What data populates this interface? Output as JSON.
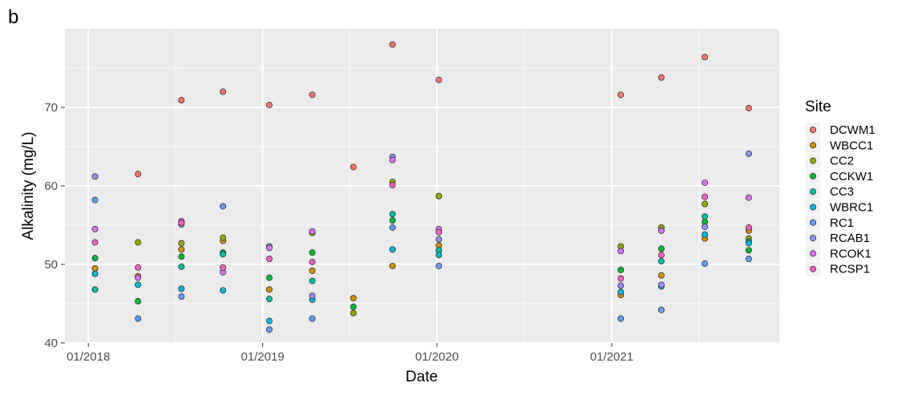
{
  "panel_label": "b",
  "chart_data": {
    "type": "scatter",
    "xlabel": "Date",
    "ylabel": "Alkalinity (mg/L)",
    "x_ticks": [
      "01/2018",
      "01/2019",
      "01/2020",
      "01/2021"
    ],
    "y_ticks": [
      40,
      50,
      60,
      70
    ],
    "ylim": [
      40,
      80
    ],
    "xlim": [
      "2017-11-13",
      "2021-12-18"
    ],
    "grid": true,
    "background": "#ebebeb",
    "legend": {
      "title": "Site",
      "position": "right"
    },
    "series": [
      {
        "name": "DCWM1",
        "color": "#F8766D",
        "points": [
          {
            "x": "2018-04-15",
            "y": 61.5
          },
          {
            "x": "2018-07-15",
            "y": 70.9
          },
          {
            "x": "2018-10-10",
            "y": 72.0
          },
          {
            "x": "2019-01-15",
            "y": 70.3
          },
          {
            "x": "2019-04-15",
            "y": 71.6
          },
          {
            "x": "2019-07-10",
            "y": 62.4
          },
          {
            "x": "2019-09-30",
            "y": 78.0
          },
          {
            "x": "2020-01-05",
            "y": 73.5
          },
          {
            "x": "2021-01-20",
            "y": 71.6
          },
          {
            "x": "2021-04-15",
            "y": 73.8
          },
          {
            "x": "2021-07-15",
            "y": 76.4
          },
          {
            "x": "2021-10-15",
            "y": 69.9
          }
        ]
      },
      {
        "name": "WBCC1",
        "color": "#D39200",
        "points": [
          {
            "x": "2018-01-15",
            "y": 49.5
          },
          {
            "x": "2018-04-15",
            "y": 48.5
          },
          {
            "x": "2018-07-15",
            "y": 51.9
          },
          {
            "x": "2018-10-10",
            "y": 53.0
          },
          {
            "x": "2019-01-15",
            "y": 46.8
          },
          {
            "x": "2019-04-15",
            "y": 49.2
          },
          {
            "x": "2019-07-10",
            "y": 45.7
          },
          {
            "x": "2019-09-30",
            "y": 49.8
          },
          {
            "x": "2020-01-05",
            "y": 52.4
          },
          {
            "x": "2021-01-20",
            "y": 46.1
          },
          {
            "x": "2021-04-15",
            "y": 48.6
          },
          {
            "x": "2021-07-15",
            "y": 53.3
          },
          {
            "x": "2021-10-15",
            "y": 54.3
          }
        ]
      },
      {
        "name": "CC2",
        "color": "#93AA00",
        "points": [
          {
            "x": "2018-04-15",
            "y": 52.8
          },
          {
            "x": "2018-07-15",
            "y": 52.7
          },
          {
            "x": "2018-10-10",
            "y": 53.4
          },
          {
            "x": "2019-04-15",
            "y": 54.0
          },
          {
            "x": "2019-07-10",
            "y": 43.8
          },
          {
            "x": "2019-09-30",
            "y": 60.5
          },
          {
            "x": "2020-01-05",
            "y": 58.7
          },
          {
            "x": "2021-01-20",
            "y": 52.3
          },
          {
            "x": "2021-04-15",
            "y": 54.7
          },
          {
            "x": "2021-07-15",
            "y": 57.7
          },
          {
            "x": "2021-10-15",
            "y": 53.3
          }
        ]
      },
      {
        "name": "CCKW1",
        "color": "#00BA38",
        "points": [
          {
            "x": "2018-01-15",
            "y": 50.8
          },
          {
            "x": "2018-04-15",
            "y": 45.3
          },
          {
            "x": "2018-07-15",
            "y": 51.0
          },
          {
            "x": "2018-10-10",
            "y": 51.5
          },
          {
            "x": "2019-01-15",
            "y": 48.3
          },
          {
            "x": "2019-04-15",
            "y": 51.5
          },
          {
            "x": "2019-07-10",
            "y": 44.6
          },
          {
            "x": "2019-09-30",
            "y": 55.6
          },
          {
            "x": "2021-01-20",
            "y": 49.3
          },
          {
            "x": "2021-04-15",
            "y": 52.0
          },
          {
            "x": "2021-07-15",
            "y": 55.4
          },
          {
            "x": "2021-10-15",
            "y": 51.8
          }
        ]
      },
      {
        "name": "CC3",
        "color": "#00C19F",
        "points": [
          {
            "x": "2018-01-15",
            "y": 46.8
          },
          {
            "x": "2018-07-15",
            "y": 49.7
          },
          {
            "x": "2018-10-10",
            "y": 51.3
          },
          {
            "x": "2019-01-15",
            "y": 45.6
          },
          {
            "x": "2019-04-15",
            "y": 47.9
          },
          {
            "x": "2019-09-30",
            "y": 56.4
          },
          {
            "x": "2020-01-05",
            "y": 51.8
          },
          {
            "x": "2021-04-15",
            "y": 50.4
          },
          {
            "x": "2021-07-15",
            "y": 56.1
          },
          {
            "x": "2021-10-15",
            "y": 52.9
          }
        ]
      },
      {
        "name": "WBRC1",
        "color": "#00B9E3",
        "points": [
          {
            "x": "2018-01-15",
            "y": 48.8
          },
          {
            "x": "2018-04-15",
            "y": 47.4
          },
          {
            "x": "2018-07-15",
            "y": 46.9
          },
          {
            "x": "2018-10-10",
            "y": 46.7
          },
          {
            "x": "2019-01-15",
            "y": 42.8
          },
          {
            "x": "2019-04-15",
            "y": 45.5
          },
          {
            "x": "2019-09-30",
            "y": 51.9
          },
          {
            "x": "2020-01-05",
            "y": 51.2
          },
          {
            "x": "2021-01-20",
            "y": 46.5
          },
          {
            "x": "2021-04-15",
            "y": 47.2
          },
          {
            "x": "2021-07-15",
            "y": 53.8
          },
          {
            "x": "2021-10-15",
            "y": 52.7
          }
        ]
      },
      {
        "name": "RC1",
        "color": "#619CFF",
        "points": [
          {
            "x": "2018-01-15",
            "y": 58.2
          },
          {
            "x": "2018-04-15",
            "y": 43.1
          },
          {
            "x": "2018-07-15",
            "y": 45.9
          },
          {
            "x": "2018-10-10",
            "y": 57.4
          },
          {
            "x": "2019-01-15",
            "y": 41.7
          },
          {
            "x": "2019-04-15",
            "y": 43.1
          },
          {
            "x": "2019-09-30",
            "y": 54.7
          },
          {
            "x": "2020-01-05",
            "y": 49.8
          },
          {
            "x": "2021-01-20",
            "y": 43.1
          },
          {
            "x": "2021-04-15",
            "y": 44.2
          },
          {
            "x": "2021-07-15",
            "y": 50.1
          },
          {
            "x": "2021-10-15",
            "y": 50.7
          }
        ]
      },
      {
        "name": "RCAB1",
        "color": "#9590FF",
        "points": [
          {
            "x": "2018-01-15",
            "y": 61.2
          },
          {
            "x": "2018-07-15",
            "y": 55.1
          },
          {
            "x": "2019-01-15",
            "y": 52.3
          },
          {
            "x": "2019-04-15",
            "y": 46.0
          },
          {
            "x": "2019-09-30",
            "y": 63.7
          },
          {
            "x": "2020-01-05",
            "y": 53.2
          },
          {
            "x": "2021-01-20",
            "y": 47.3
          },
          {
            "x": "2021-04-15",
            "y": 47.4
          },
          {
            "x": "2021-07-15",
            "y": 54.8
          },
          {
            "x": "2021-10-15",
            "y": 64.1
          }
        ]
      },
      {
        "name": "RCOK1",
        "color": "#DB72FB",
        "points": [
          {
            "x": "2018-01-15",
            "y": 54.5
          },
          {
            "x": "2018-04-15",
            "y": 48.3
          },
          {
            "x": "2018-07-15",
            "y": 55.5
          },
          {
            "x": "2018-10-10",
            "y": 49.0
          },
          {
            "x": "2019-01-15",
            "y": 52.1
          },
          {
            "x": "2019-04-15",
            "y": 54.2
          },
          {
            "x": "2019-09-30",
            "y": 63.3
          },
          {
            "x": "2020-01-05",
            "y": 54.5
          },
          {
            "x": "2021-01-20",
            "y": 51.7
          },
          {
            "x": "2021-04-15",
            "y": 54.3
          },
          {
            "x": "2021-07-15",
            "y": 60.4
          },
          {
            "x": "2021-10-15",
            "y": 58.5
          }
        ]
      },
      {
        "name": "RCSP1",
        "color": "#FF61C3",
        "points": [
          {
            "x": "2018-01-15",
            "y": 52.8
          },
          {
            "x": "2018-04-15",
            "y": 49.6
          },
          {
            "x": "2018-07-15",
            "y": 55.3
          },
          {
            "x": "2018-10-10",
            "y": 49.6
          },
          {
            "x": "2019-01-15",
            "y": 50.7
          },
          {
            "x": "2019-04-15",
            "y": 50.3
          },
          {
            "x": "2019-09-30",
            "y": 60.1
          },
          {
            "x": "2020-01-05",
            "y": 54.1
          },
          {
            "x": "2021-01-20",
            "y": 48.2
          },
          {
            "x": "2021-04-15",
            "y": 51.2
          },
          {
            "x": "2021-07-15",
            "y": 58.6
          },
          {
            "x": "2021-10-15",
            "y": 54.7
          }
        ]
      }
    ]
  }
}
